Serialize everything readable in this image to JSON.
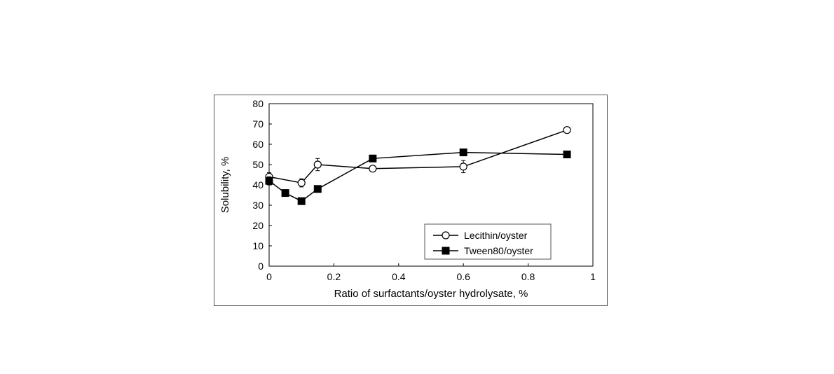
{
  "chart": {
    "type": "line",
    "background_color": "#ffffff",
    "border_color": "#555555",
    "axis": {
      "x": {
        "label": "Ratio of surfactants/oyster hydrolysate, %",
        "min": 0,
        "max": 1,
        "tick_step": 0.2,
        "ticks": [
          0,
          0.2,
          0.4,
          0.6,
          0.8,
          1
        ],
        "label_fontsize": 15,
        "tick_fontsize": 14
      },
      "y": {
        "label": "Solubility, %",
        "min": 0,
        "max": 80,
        "tick_step": 10,
        "ticks": [
          0,
          10,
          20,
          30,
          40,
          50,
          60,
          70,
          80
        ],
        "label_fontsize": 15,
        "tick_fontsize": 14
      }
    },
    "series": [
      {
        "name": "Lecithin/oyster",
        "marker": "open-circle",
        "marker_size": 5,
        "line_color": "#000000",
        "marker_fill": "#ffffff",
        "marker_stroke": "#000000",
        "line_width": 1.5,
        "points": [
          {
            "x": 0.0,
            "y": 44,
            "err": 2
          },
          {
            "x": 0.1,
            "y": 41,
            "err": 2
          },
          {
            "x": 0.15,
            "y": 50,
            "err": 3
          },
          {
            "x": 0.32,
            "y": 48,
            "err": 1
          },
          {
            "x": 0.6,
            "y": 49,
            "err": 3
          },
          {
            "x": 0.92,
            "y": 67,
            "err": 1
          }
        ]
      },
      {
        "name": "Tween80/oyster",
        "marker": "filled-square",
        "marker_size": 5,
        "line_color": "#000000",
        "marker_fill": "#000000",
        "marker_stroke": "#000000",
        "line_width": 1.5,
        "points": [
          {
            "x": 0.0,
            "y": 42,
            "err": 2
          },
          {
            "x": 0.05,
            "y": 36,
            "err": 1
          },
          {
            "x": 0.1,
            "y": 32,
            "err": 1
          },
          {
            "x": 0.15,
            "y": 38,
            "err": 1
          },
          {
            "x": 0.32,
            "y": 53,
            "err": 1
          },
          {
            "x": 0.6,
            "y": 56,
            "err": 1
          },
          {
            "x": 0.92,
            "y": 55,
            "err": 1
          }
        ]
      }
    ],
    "legend": {
      "position": "inside-bottom-right",
      "items": [
        "Lecithin/oyster",
        "Tween80/oyster"
      ],
      "fontsize": 14,
      "box_border": "#555555",
      "box_fill": "#ffffff"
    }
  }
}
